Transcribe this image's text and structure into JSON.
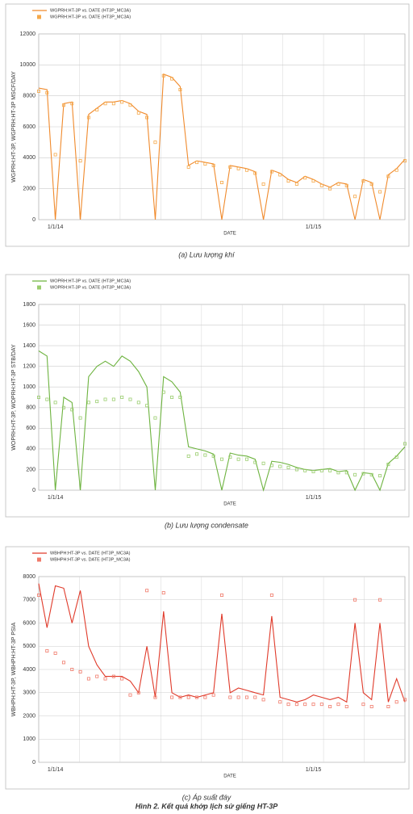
{
  "chart_data": [
    {
      "type": "line",
      "caption": "(a) Lưu lượng khí",
      "ylabel": "WGPRH:HT-3P, WGPRH:HT-3P  MSCF/DAY",
      "xlabel": "DATE",
      "categories": [
        null,
        null,
        "1/1/14",
        null,
        null,
        null,
        null,
        null,
        null,
        null,
        null,
        null,
        null,
        null,
        null,
        null,
        null,
        null,
        null,
        null,
        null,
        null,
        null,
        null,
        null,
        null,
        null,
        null,
        null,
        null,
        null,
        null,
        null,
        "1/1/15",
        null,
        null,
        null,
        null,
        null,
        null,
        null,
        null,
        null,
        null,
        null
      ],
      "ylim": [
        0,
        12000
      ],
      "yticks": [
        0,
        2000,
        4000,
        6000,
        8000,
        10000,
        12000
      ],
      "grid": true,
      "series": [
        {
          "name": "WGPRH:HT-3P vs. DATE (HT3P_MC3A)",
          "style": "line",
          "color": "#f08a2c",
          "values": [
            8500,
            8400,
            0,
            7500,
            7600,
            0,
            6800,
            7200,
            7600,
            7600,
            7700,
            7500,
            7000,
            6800,
            0,
            9400,
            9200,
            8600,
            3500,
            3800,
            3700,
            3600,
            0,
            3500,
            3400,
            3300,
            3100,
            0,
            3200,
            3000,
            2600,
            2400,
            2800,
            2600,
            2300,
            2100,
            2400,
            2300,
            0,
            2600,
            2400,
            0,
            2900,
            3300,
            3900
          ]
        },
        {
          "name": "WGPRH:HT-3P vs. DATE (HT3P_MC3A)",
          "style": "points",
          "color": "#f5a84a",
          "values": [
            8300,
            8200,
            4200,
            7400,
            7500,
            3800,
            6600,
            7100,
            7500,
            7500,
            7600,
            7400,
            6900,
            6600,
            5000,
            9300,
            9100,
            8400,
            3400,
            3700,
            3600,
            3500,
            2400,
            3400,
            3300,
            3200,
            3000,
            2300,
            3100,
            2900,
            2500,
            2300,
            2700,
            2500,
            2200,
            2000,
            2300,
            2200,
            1500,
            2500,
            2300,
            1800,
            2800,
            3200,
            3800
          ]
        }
      ]
    },
    {
      "type": "line",
      "caption": "(b) Lưu lượng condensate",
      "ylabel": "WOPRH:HT-3P, WOPRH:HT-3P  STB/DAY",
      "xlabel": "DATE",
      "categories": [
        null,
        null,
        "1/1/14",
        null,
        null,
        null,
        null,
        null,
        null,
        null,
        null,
        null,
        null,
        null,
        null,
        null,
        null,
        null,
        null,
        null,
        null,
        null,
        null,
        null,
        null,
        null,
        null,
        null,
        null,
        null,
        null,
        null,
        null,
        "1/1/15",
        null,
        null,
        null,
        null,
        null,
        null,
        null,
        null,
        null,
        null,
        null
      ],
      "ylim": [
        0,
        1800
      ],
      "yticks": [
        0,
        200,
        400,
        600,
        800,
        1000,
        1200,
        1400,
        1600,
        1800
      ],
      "grid": true,
      "series": [
        {
          "name": "WOPRH:HT-3P vs. DATE (HT3P_MC3A)",
          "style": "line",
          "color": "#6db33f",
          "values": [
            1350,
            1300,
            0,
            900,
            850,
            0,
            1100,
            1200,
            1250,
            1200,
            1300,
            1250,
            1150,
            1000,
            0,
            1100,
            1050,
            950,
            420,
            400,
            380,
            350,
            0,
            360,
            340,
            330,
            300,
            0,
            280,
            270,
            250,
            220,
            200,
            190,
            200,
            210,
            180,
            190,
            0,
            170,
            160,
            0,
            260,
            330,
            420
          ]
        },
        {
          "name": "WOPRH:HT-3P vs. DATE (HT3P_MC3A)",
          "style": "points",
          "color": "#9acd6e",
          "values": [
            900,
            880,
            850,
            800,
            780,
            700,
            850,
            860,
            880,
            880,
            900,
            880,
            850,
            820,
            700,
            950,
            900,
            900,
            330,
            350,
            340,
            330,
            300,
            320,
            300,
            300,
            270,
            260,
            240,
            230,
            220,
            200,
            190,
            180,
            190,
            190,
            170,
            170,
            150,
            160,
            150,
            140,
            250,
            320,
            450
          ]
        }
      ]
    },
    {
      "type": "line",
      "caption": "(c) Áp suất đáy",
      "ylabel": "WBHPH:HT-3P, WBHPH:HT-3P  PSIA",
      "xlabel": "DATE",
      "categories": [
        null,
        null,
        "1/1/14",
        null,
        null,
        null,
        null,
        null,
        null,
        null,
        null,
        null,
        null,
        null,
        null,
        null,
        null,
        null,
        null,
        null,
        null,
        null,
        null,
        null,
        null,
        null,
        null,
        null,
        null,
        null,
        null,
        null,
        null,
        "1/1/15",
        null,
        null,
        null,
        null,
        null,
        null,
        null,
        null,
        null,
        null,
        null
      ],
      "ylim": [
        0,
        8000
      ],
      "yticks": [
        0,
        1000,
        2000,
        3000,
        4000,
        5000,
        6000,
        7000,
        8000
      ],
      "grid": true,
      "series": [
        {
          "name": "WBHPH:HT-3P vs. DATE (HT3P_MC3A)",
          "style": "line",
          "color": "#e03a2a",
          "values": [
            7700,
            5800,
            7600,
            7500,
            6000,
            7400,
            5000,
            4200,
            3700,
            3700,
            3700,
            3500,
            3000,
            5000,
            2800,
            6500,
            3000,
            2800,
            2900,
            2800,
            2900,
            3000,
            6400,
            3000,
            3200,
            3100,
            3000,
            2900,
            6300,
            2800,
            2700,
            2600,
            2700,
            2900,
            2800,
            2700,
            2800,
            2600,
            6000,
            3000,
            2700,
            6000,
            2600,
            3600,
            2600
          ]
        },
        {
          "name": "WBHPH:HT-3P vs. DATE (HT3P_MC3A)",
          "style": "points",
          "color": "#f07a6a",
          "values": [
            7200,
            4800,
            4700,
            4300,
            4000,
            3900,
            3600,
            3700,
            3600,
            3700,
            3600,
            2900,
            3000,
            7400,
            2800,
            7300,
            2800,
            2800,
            2800,
            2800,
            2800,
            2900,
            7200,
            2800,
            2800,
            2800,
            2800,
            2700,
            7200,
            2600,
            2500,
            2500,
            2500,
            2500,
            2500,
            2400,
            2500,
            2400,
            7000,
            2500,
            2400,
            7000,
            2400,
            2600,
            2700
          ]
        }
      ]
    }
  ],
  "figure_caption": "Hình 2. Kết quả khớp lịch sử giếng HT-3P"
}
